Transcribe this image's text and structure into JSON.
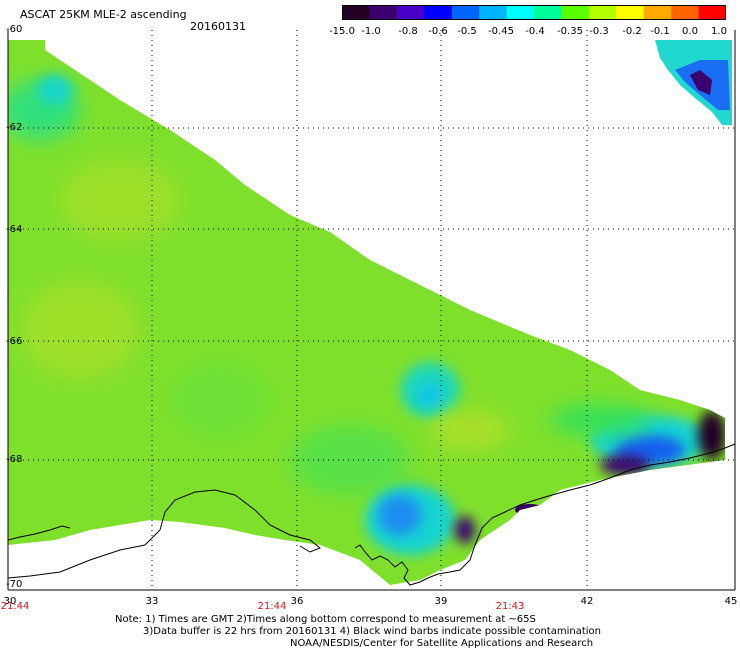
{
  "header": {
    "title": "ASCAT 25KM MLE-2 ascending",
    "date": "20160131"
  },
  "colorbar": {
    "labels": [
      "-15.0",
      "-1.0",
      "-0.8",
      "-0.6",
      "-0.5",
      "-0.45",
      "-0.4",
      "-0.35",
      "-0.3",
      "-0.2",
      "-0.1",
      "0.0",
      "1.0"
    ],
    "colors": [
      "#240025",
      "#3c006e",
      "#4b00c8",
      "#0000ff",
      "#0064ff",
      "#00b4ff",
      "#00ffff",
      "#00ff9a",
      "#5aff00",
      "#b4ff00",
      "#ffff00",
      "#ffaa00",
      "#ff6400",
      "#ff0000"
    ]
  },
  "map": {
    "lat_labels": [
      "-60",
      "-62",
      "-64",
      "-66",
      "-68",
      "-70"
    ],
    "lon_labels": [
      "30",
      "33",
      "36",
      "39",
      "42",
      "45"
    ],
    "time_labels": [
      "21:44",
      "21:44",
      "21:43"
    ],
    "background_color": "#7fe02c",
    "coastline_color": "#000000"
  },
  "notes": {
    "line1": "Note: 1) Times are GMT 2)Times along bottom correspond to measurement at ~65S",
    "line2": "3)Data buffer is 22 hrs from 20160131 4) Black wind barbs indicate possible contamination",
    "line3": "NOAA/NESDIS/Center for Satellite Applications and Research"
  }
}
